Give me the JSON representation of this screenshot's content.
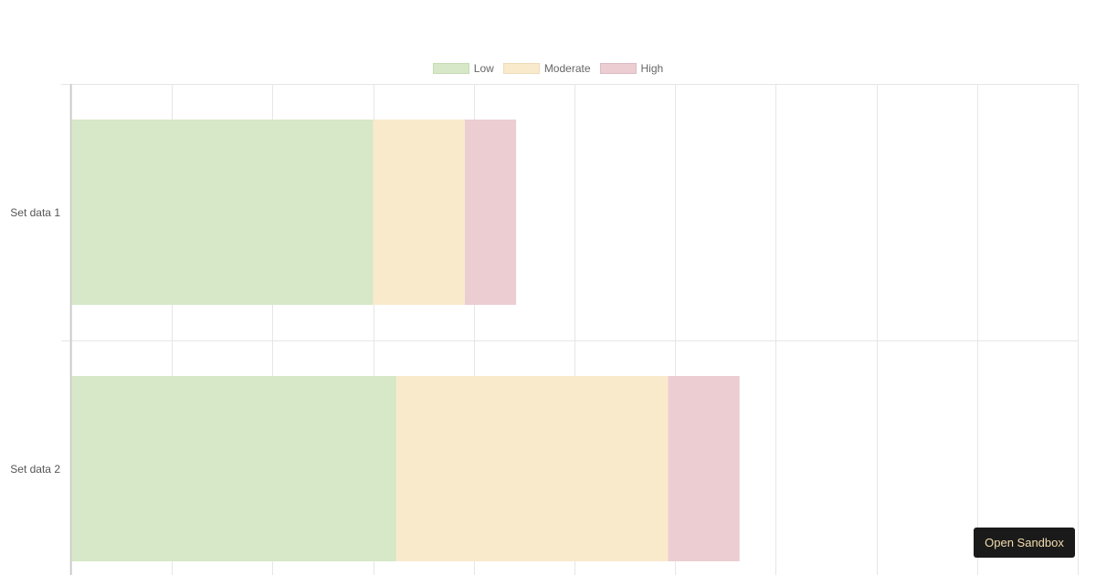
{
  "chart_data": {
    "type": "bar",
    "orientation": "horizontal",
    "stacked": true,
    "categories": [
      "Set data 1",
      "Set data 2"
    ],
    "series": [
      {
        "name": "Low",
        "values": [
          30,
          32.3
        ],
        "color": "#d6e8c7",
        "border": "#c5dbb3"
      },
      {
        "name": "Moderate",
        "values": [
          9.1,
          27
        ],
        "color": "#f9eacc",
        "border": "#eedcb8"
      },
      {
        "name": "High",
        "values": [
          5.1,
          7.1
        ],
        "color": "#ebcdd2",
        "border": "#dcbcc2"
      }
    ],
    "xlim": [
      0,
      100
    ],
    "grid": true,
    "legend": "top-center",
    "title": "",
    "xlabel": "",
    "ylabel": ""
  },
  "actions": {
    "open_sandbox_label": "Open Sandbox"
  }
}
